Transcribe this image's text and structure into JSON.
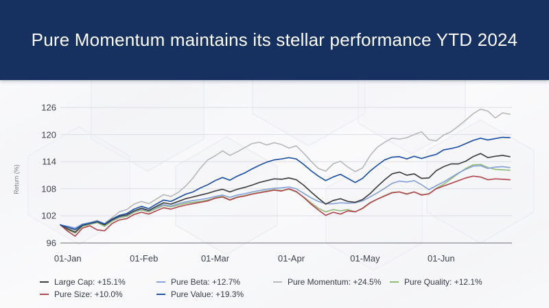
{
  "banner": {
    "title": "Pure Momentum maintains its stellar performance YTD 2024",
    "bg_color": "#16305F",
    "text_color": "#fdfdfd"
  },
  "chart_data": {
    "type": "line",
    "title": "",
    "xlabel": "",
    "ylabel": "Return (%)",
    "ylim": [
      96,
      126
    ],
    "yticks": [
      96,
      102,
      108,
      114,
      120,
      126
    ],
    "xticklabels": [
      "01-Jan",
      "01-Feb",
      "01-Mar",
      "01-Apr",
      "01-May",
      "01-Jun"
    ],
    "xtick_days": [
      3,
      34,
      63,
      94,
      124,
      155
    ],
    "grid": "horizontal",
    "legend_position": "bottom",
    "x_unit": "days from first plotted session (late Dec 2023)",
    "x_days": [
      0,
      3,
      6,
      9,
      12,
      15,
      18,
      21,
      24,
      27,
      30,
      33,
      36,
      39,
      42,
      45,
      48,
      51,
      54,
      57,
      60,
      63,
      66,
      69,
      72,
      75,
      78,
      81,
      84,
      87,
      90,
      93,
      96,
      99,
      102,
      105,
      108,
      111,
      114,
      117,
      120,
      123,
      126,
      129,
      132,
      135,
      138,
      141,
      144,
      147,
      150,
      153,
      156,
      159,
      162,
      165,
      168,
      171,
      174,
      177,
      180,
      183
    ],
    "series": [
      {
        "name": "Pure Momentum",
        "label": "Pure Momentum: +24.5%",
        "final_return_pct": 24.5,
        "color": "#b8babc",
        "values": [
          100,
          99.3,
          98.8,
          99.8,
          100.5,
          101,
          100.3,
          101.6,
          102.9,
          103.4,
          104.6,
          105.2,
          104.7,
          105.7,
          106.7,
          106.3,
          107.2,
          108.6,
          110.4,
          112.6,
          114.4,
          115.3,
          116.4,
          115.4,
          116.2,
          117.1,
          118,
          118.3,
          117.7,
          118.2,
          117.8,
          117,
          117.5,
          115.9,
          114.1,
          112.5,
          111.9,
          113.5,
          114.1,
          112.8,
          111.8,
          112.6,
          115.3,
          117.2,
          118.3,
          119.2,
          119,
          119.3,
          120,
          120.6,
          118.9,
          118.6,
          119.9,
          120.6,
          121.9,
          123.2,
          124.6,
          125.6,
          125.2,
          123.7,
          124.8,
          124.5
        ]
      },
      {
        "name": "Pure Quality",
        "label": "Pure Quality: +12.1%",
        "final_return_pct": 12.1,
        "color": "#93ba7a",
        "values": [
          100,
          98.9,
          98.2,
          99.7,
          100.1,
          100.5,
          99.7,
          100.8,
          101.6,
          101.9,
          102.8,
          103.3,
          102.9,
          103.6,
          104.3,
          104,
          104.4,
          104.8,
          105,
          105.2,
          105.5,
          106,
          106.3,
          105.6,
          106.2,
          106.5,
          106.9,
          107.2,
          107.5,
          107.8,
          107.6,
          107.9,
          107.3,
          106.2,
          104.9,
          103.7,
          102.9,
          103.4,
          103.1,
          103.4,
          102.9,
          103.6,
          104.8,
          105.7,
          106.5,
          107.2,
          107.3,
          106.9,
          107.3,
          106.7,
          106.8,
          108.1,
          109,
          110.2,
          111.4,
          112.5,
          113.3,
          113.4,
          112.7,
          112.3,
          112.2,
          112.1
        ]
      },
      {
        "name": "Pure Beta",
        "label": "Pure Beta: +12.7%",
        "final_return_pct": 12.7,
        "color": "#86a2d8",
        "values": [
          100,
          99.7,
          99.3,
          100.2,
          100.5,
          100.8,
          100.2,
          101.1,
          101.8,
          102.1,
          103,
          103.5,
          103.1,
          103.9,
          104.5,
          104.2,
          104.7,
          105.1,
          105.4,
          105.6,
          105.9,
          106.3,
          106.6,
          106.1,
          106.6,
          106.9,
          107.3,
          107.6,
          107.9,
          108.1,
          108.2,
          108.4,
          108,
          107,
          106,
          105.2,
          104.7,
          104.7,
          104.9,
          104.8,
          104.9,
          105.3,
          106.2,
          107.1,
          108.1,
          109.2,
          109.7,
          109.5,
          109.8,
          108.9,
          107.8,
          108.7,
          109.5,
          110.5,
          111.5,
          112.3,
          113,
          113.1,
          112.5,
          112.8,
          112.9,
          112.7
        ]
      },
      {
        "name": "Pure Size",
        "label": "Pure Size: +10.0%",
        "final_return_pct": 10.0,
        "color": "#b04a52",
        "values": [
          100,
          98.6,
          97.5,
          99.3,
          99.8,
          98.9,
          98.7,
          100.3,
          101.1,
          101.4,
          102.3,
          102.8,
          102.4,
          103.1,
          103.8,
          103.5,
          104,
          104.4,
          104.7,
          105,
          105.3,
          105.9,
          106.2,
          105.5,
          106.1,
          106.4,
          106.8,
          107.1,
          107.4,
          107.7,
          107.5,
          108,
          107.4,
          106.1,
          104.6,
          103.3,
          102.1,
          102.8,
          102.4,
          103.1,
          102.9,
          103.7,
          104.9,
          105.7,
          106.4,
          107.1,
          107.3,
          106.8,
          107.3,
          106.6,
          106.9,
          108,
          108.6,
          109.2,
          109.8,
          110.4,
          110.8,
          110.6,
          110,
          110.2,
          110.1,
          110
        ]
      },
      {
        "name": "Large Cap",
        "label": "Large Cap: +15.1%",
        "final_return_pct": 15.1,
        "color": "#404040",
        "values": [
          100,
          99.1,
          98.4,
          99.9,
          100.3,
          100.7,
          100,
          101.1,
          101.9,
          102.2,
          103.1,
          103.7,
          103.2,
          104.1,
          104.9,
          104.6,
          105.2,
          105.8,
          106.2,
          106.6,
          107,
          107.5,
          107.9,
          107.3,
          107.9,
          108.3,
          108.8,
          109.4,
          109.8,
          110.2,
          110.1,
          110.4,
          110,
          108.8,
          107.3,
          105.9,
          104.6,
          105.4,
          105.8,
          105.2,
          105,
          105.6,
          106.9,
          108.5,
          110,
          111.3,
          111.7,
          111,
          111.3,
          110.3,
          110.4,
          112,
          112.9,
          113.5,
          113.5,
          114.1,
          115.1,
          115.8,
          114.9,
          115.2,
          115.4,
          115.1
        ]
      },
      {
        "name": "Pure Value",
        "label": "Pure Value: +19.3%",
        "final_return_pct": 19.3,
        "color": "#2053a4",
        "values": [
          100,
          99.5,
          99,
          100,
          100.4,
          100.8,
          100.2,
          101.3,
          102.1,
          102.5,
          103.5,
          104.1,
          103.6,
          104.6,
          105.5,
          105.2,
          106,
          106.8,
          107.3,
          108.2,
          108.9,
          109.8,
          110.5,
          109.9,
          110.8,
          111.5,
          112.4,
          113.2,
          113.9,
          114.4,
          114.6,
          114.9,
          114.6,
          113.4,
          112,
          110.8,
          109.8,
          110.6,
          111.2,
          110.3,
          109.4,
          110.3,
          111.9,
          113.2,
          114.4,
          115,
          115.1,
          114.6,
          115.2,
          114.7,
          115.2,
          115.6,
          116.6,
          116.9,
          117.3,
          118,
          118.7,
          119.2,
          118.8,
          119.1,
          119.4,
          119.3
        ]
      }
    ],
    "legend_rows": [
      [
        "Large Cap",
        "Pure Beta",
        "Pure Momentum",
        "Pure Quality"
      ],
      [
        "Pure Size",
        "Pure Value"
      ]
    ]
  }
}
